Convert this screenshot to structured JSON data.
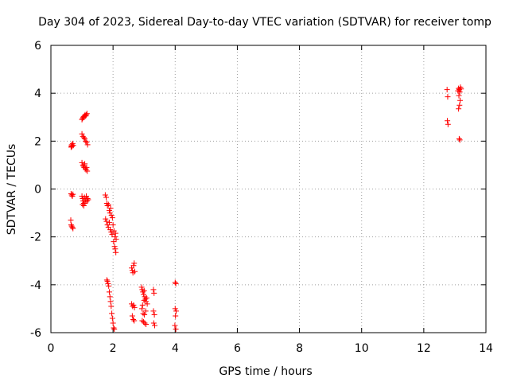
{
  "chart_data": {
    "type": "scatter",
    "title": "Day 304 of 2023, Sidereal Day-to-day VTEC variation (SDTVAR) for receiver tomp",
    "xlabel": "GPS time / hours",
    "ylabel": "SDTVAR / TECUs",
    "xlim": [
      0,
      14
    ],
    "ylim": [
      -6,
      6
    ],
    "xticks": [
      0,
      2,
      4,
      6,
      8,
      10,
      12,
      14
    ],
    "yticks": [
      -6,
      -4,
      -2,
      0,
      2,
      4,
      6
    ],
    "grid": true,
    "marker": "+",
    "color": "#ff0000",
    "series": [
      {
        "name": "SDTVAR",
        "points": [
          [
            0.65,
            1.75
          ],
          [
            0.66,
            1.8
          ],
          [
            0.67,
            1.85
          ],
          [
            0.68,
            1.78
          ],
          [
            0.7,
            1.9
          ],
          [
            0.72,
            1.82
          ],
          [
            0.65,
            -0.2
          ],
          [
            0.67,
            -0.25
          ],
          [
            0.69,
            -0.3
          ],
          [
            0.71,
            -0.22
          ],
          [
            0.64,
            -1.3
          ],
          [
            0.65,
            -1.5
          ],
          [
            0.67,
            -1.55
          ],
          [
            0.69,
            -1.6
          ],
          [
            0.71,
            -1.65
          ],
          [
            1.0,
            2.9
          ],
          [
            1.02,
            2.95
          ],
          [
            1.04,
            3.0
          ],
          [
            1.06,
            3.02
          ],
          [
            1.08,
            3.05
          ],
          [
            1.1,
            3.1
          ],
          [
            1.12,
            3.05
          ],
          [
            1.14,
            3.1
          ],
          [
            1.16,
            3.15
          ],
          [
            1.0,
            2.3
          ],
          [
            1.03,
            2.2
          ],
          [
            1.06,
            2.15
          ],
          [
            1.09,
            2.1
          ],
          [
            1.12,
            2.0
          ],
          [
            1.15,
            1.95
          ],
          [
            1.18,
            1.85
          ],
          [
            1.0,
            1.1
          ],
          [
            1.03,
            1.0
          ],
          [
            1.05,
            0.95
          ],
          [
            1.07,
            0.9
          ],
          [
            1.09,
            1.05
          ],
          [
            1.11,
            0.85
          ],
          [
            1.13,
            0.8
          ],
          [
            1.15,
            0.9
          ],
          [
            1.17,
            0.75
          ],
          [
            1.0,
            -0.3
          ],
          [
            1.02,
            -0.4
          ],
          [
            1.04,
            -0.5
          ],
          [
            1.06,
            -0.6
          ],
          [
            1.08,
            -0.35
          ],
          [
            1.1,
            -0.55
          ],
          [
            1.12,
            -0.45
          ],
          [
            1.14,
            -0.3
          ],
          [
            1.16,
            -0.5
          ],
          [
            1.18,
            -0.4
          ],
          [
            1.2,
            -0.45
          ],
          [
            1.02,
            -0.65
          ],
          [
            1.06,
            -0.7
          ],
          [
            1.1,
            -0.6
          ],
          [
            1.75,
            -0.25
          ],
          [
            1.78,
            -0.35
          ],
          [
            1.8,
            -0.6
          ],
          [
            1.82,
            -0.7
          ],
          [
            1.85,
            -0.65
          ],
          [
            1.88,
            -0.9
          ],
          [
            1.9,
            -1.0
          ],
          [
            1.92,
            -0.8
          ],
          [
            1.95,
            -1.1
          ],
          [
            1.98,
            -1.2
          ],
          [
            1.76,
            -1.25
          ],
          [
            1.79,
            -1.35
          ],
          [
            1.82,
            -1.5
          ],
          [
            1.85,
            -1.6
          ],
          [
            1.88,
            -1.4
          ],
          [
            1.91,
            -1.7
          ],
          [
            1.94,
            -1.8
          ],
          [
            1.97,
            -1.9
          ],
          [
            2.0,
            -1.5
          ],
          [
            2.03,
            -1.75
          ],
          [
            2.06,
            -2.0
          ],
          [
            2.08,
            -1.85
          ],
          [
            2.1,
            -2.1
          ],
          [
            2.02,
            -2.2
          ],
          [
            2.05,
            -2.4
          ],
          [
            2.07,
            -2.5
          ],
          [
            2.09,
            -2.65
          ],
          [
            1.8,
            -3.8
          ],
          [
            1.82,
            -3.85
          ],
          [
            1.84,
            -3.95
          ],
          [
            1.86,
            -4.05
          ],
          [
            1.88,
            -4.3
          ],
          [
            1.9,
            -4.5
          ],
          [
            1.92,
            -4.7
          ],
          [
            1.94,
            -4.9
          ],
          [
            1.96,
            -5.2
          ],
          [
            1.98,
            -5.4
          ],
          [
            2.0,
            -5.6
          ],
          [
            2.02,
            -5.8
          ],
          [
            2.04,
            -5.85
          ],
          [
            2.6,
            -3.3
          ],
          [
            2.62,
            -3.4
          ],
          [
            2.64,
            -3.5
          ],
          [
            2.66,
            -3.2
          ],
          [
            2.68,
            -3.1
          ],
          [
            2.7,
            -3.45
          ],
          [
            2.6,
            -4.8
          ],
          [
            2.63,
            -4.9
          ],
          [
            2.66,
            -4.85
          ],
          [
            2.69,
            -4.95
          ],
          [
            2.62,
            -5.3
          ],
          [
            2.65,
            -5.45
          ],
          [
            2.68,
            -5.5
          ],
          [
            2.92,
            -4.1
          ],
          [
            2.94,
            -4.2
          ],
          [
            2.96,
            -4.3
          ],
          [
            2.98,
            -4.4
          ],
          [
            3.0,
            -4.25
          ],
          [
            3.02,
            -4.5
          ],
          [
            3.04,
            -4.6
          ],
          [
            3.06,
            -4.7
          ],
          [
            3.08,
            -4.55
          ],
          [
            3.1,
            -4.8
          ],
          [
            2.95,
            -4.85
          ],
          [
            3.0,
            -4.65
          ],
          [
            2.93,
            -5.0
          ],
          [
            2.97,
            -5.2
          ],
          [
            3.01,
            -5.25
          ],
          [
            3.05,
            -5.1
          ],
          [
            2.94,
            -5.5
          ],
          [
            2.98,
            -5.55
          ],
          [
            3.02,
            -5.6
          ],
          [
            3.06,
            -5.65
          ],
          [
            3.3,
            -4.2
          ],
          [
            3.32,
            -4.35
          ],
          [
            3.3,
            -5.1
          ],
          [
            3.33,
            -5.25
          ],
          [
            3.31,
            -5.6
          ],
          [
            3.34,
            -5.7
          ],
          [
            4.0,
            -3.9
          ],
          [
            4.02,
            -3.95
          ],
          [
            4.0,
            -5.0
          ],
          [
            4.03,
            -5.1
          ],
          [
            4.01,
            -5.3
          ],
          [
            3.99,
            -5.7
          ],
          [
            4.02,
            -5.85
          ],
          [
            12.75,
            4.15
          ],
          [
            12.77,
            3.85
          ],
          [
            12.76,
            2.85
          ],
          [
            12.78,
            2.7
          ],
          [
            13.1,
            4.1
          ],
          [
            13.12,
            4.2
          ],
          [
            13.14,
            4.15
          ],
          [
            13.16,
            4.05
          ],
          [
            13.18,
            4.25
          ],
          [
            13.2,
            4.18
          ],
          [
            13.13,
            3.9
          ],
          [
            13.17,
            3.7
          ],
          [
            13.15,
            3.5
          ],
          [
            13.12,
            3.35
          ],
          [
            13.14,
            2.1
          ],
          [
            13.16,
            2.05
          ]
        ]
      }
    ]
  }
}
